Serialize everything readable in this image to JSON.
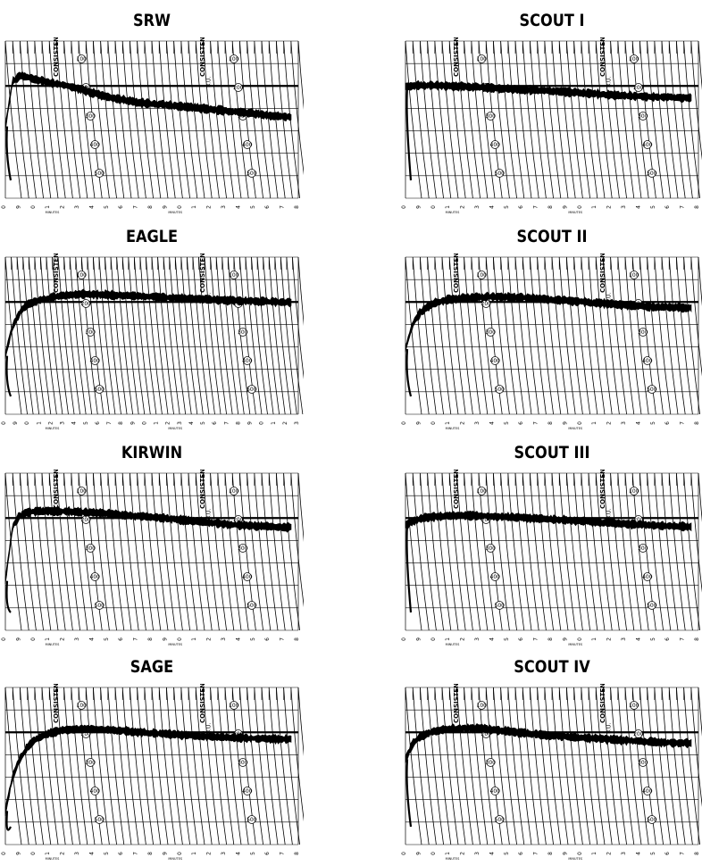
{
  "chart_data": [
    {
      "type": "line",
      "title": "SRW",
      "consistency_label": "CONSISTENCY",
      "bu_label": "B.U.",
      "arc_labels": [
        "100",
        "200",
        "300",
        "400",
        "500"
      ],
      "minutes_label": "MINUTES",
      "x_ticks": [
        "0",
        "9",
        "0",
        "1",
        "2",
        "3",
        "4",
        "5",
        "6",
        "7",
        "8",
        "9",
        "0",
        "1",
        "2",
        "3",
        "4",
        "5",
        "6",
        "7",
        "8"
      ],
      "x": [
        0,
        0.5,
        1,
        1.5,
        2,
        3,
        4,
        5,
        6,
        7,
        8,
        9,
        10,
        11,
        12,
        13,
        14,
        15,
        16,
        17,
        18,
        19,
        20
      ],
      "y": [
        320,
        520,
        545,
        540,
        530,
        515,
        505,
        490,
        470,
        455,
        440,
        430,
        422,
        417,
        410,
        405,
        398,
        392,
        385,
        380,
        372,
        365,
        360
      ]
    },
    {
      "type": "line",
      "title": "SCOUT I",
      "consistency_label": "CONSISTENCY",
      "bu_label": "B.U.",
      "arc_labels": [
        "100",
        "200",
        "300",
        "400",
        "500"
      ],
      "minutes_label": "MINUTES",
      "x_ticks": [
        "0",
        "9",
        "0",
        "1",
        "2",
        "3",
        "4",
        "5",
        "6",
        "7",
        "8",
        "9",
        "0",
        "1",
        "2",
        "3",
        "4",
        "5",
        "6",
        "7",
        "8"
      ],
      "x": [
        0,
        0.5,
        1,
        1.5,
        2,
        3,
        4,
        5,
        6,
        7,
        8,
        9,
        10,
        11,
        12,
        13,
        14,
        15,
        16,
        17,
        18,
        19,
        20
      ],
      "y": [
        495,
        500,
        503,
        503,
        502,
        500,
        497,
        494,
        491,
        487,
        484,
        481,
        478,
        474,
        470,
        466,
        462,
        458,
        455,
        452,
        450,
        448,
        447
      ]
    },
    {
      "type": "line",
      "title": "EAGLE",
      "consistency_label": "CONSISTENCY",
      "bu_label": "B.U.",
      "arc_labels": [
        "100",
        "200",
        "300",
        "400",
        "500"
      ],
      "minutes_label": "MINUTES",
      "x_ticks": [
        "0",
        "9",
        "0",
        "1",
        "2",
        "3",
        "4",
        "5",
        "6",
        "7",
        "8",
        "9",
        "0",
        "1",
        "2",
        "3",
        "4",
        "5",
        "6",
        "7",
        "8",
        "9",
        "0",
        "1",
        "2",
        "3"
      ],
      "x": [
        0,
        0.5,
        1,
        1.5,
        2,
        3,
        4,
        5,
        6,
        7,
        8,
        9,
        10,
        11,
        12,
        13,
        14,
        15,
        16,
        17,
        18,
        19,
        20,
        21,
        22,
        23,
        24,
        25
      ],
      "y": [
        260,
        370,
        430,
        470,
        490,
        508,
        520,
        528,
        532,
        535,
        534,
        532,
        530,
        528,
        526,
        523,
        520,
        518,
        516,
        513,
        510,
        508,
        506,
        505,
        503,
        502,
        500,
        499
      ]
    },
    {
      "type": "line",
      "title": "SCOUT II",
      "consistency_label": "CONSISTENCY",
      "bu_label": "B.U.",
      "arc_labels": [
        "100",
        "200",
        "300",
        "400",
        "500"
      ],
      "minutes_label": "MINUTES",
      "x_ticks": [
        "0",
        "9",
        "0",
        "1",
        "2",
        "3",
        "4",
        "5",
        "6",
        "7",
        "8",
        "9",
        "0",
        "1",
        "2",
        "3",
        "4",
        "5",
        "6",
        "7",
        "8"
      ],
      "x": [
        0,
        0.5,
        1,
        1.5,
        2,
        3,
        4,
        5,
        6,
        7,
        8,
        9,
        10,
        11,
        12,
        13,
        14,
        15,
        16,
        17,
        18,
        19,
        20
      ],
      "y": [
        290,
        400,
        450,
        478,
        495,
        510,
        518,
        522,
        523,
        522,
        520,
        516,
        512,
        508,
        503,
        498,
        493,
        488,
        484,
        480,
        477,
        475,
        474
      ]
    },
    {
      "type": "line",
      "title": "KIRWIN",
      "consistency_label": "CONSISTENCY",
      "bu_label": "B.U.",
      "arc_labels": [
        "100",
        "200",
        "300",
        "400",
        "500"
      ],
      "minutes_label": "MINUTES",
      "x_ticks": [
        "0",
        "9",
        "0",
        "1",
        "2",
        "3",
        "4",
        "5",
        "6",
        "7",
        "8",
        "9",
        "0",
        "1",
        "2",
        "3",
        "4",
        "5",
        "6",
        "7",
        "8"
      ],
      "x": [
        0,
        0.5,
        1,
        1.5,
        2,
        3,
        4,
        5,
        6,
        7,
        8,
        9,
        10,
        11,
        12,
        13,
        14,
        15,
        16,
        17,
        18,
        19,
        20
      ],
      "y": [
        220,
        460,
        510,
        525,
        530,
        532,
        530,
        527,
        524,
        520,
        515,
        510,
        505,
        500,
        494,
        488,
        482,
        476,
        470,
        466,
        463,
        460,
        458
      ]
    },
    {
      "type": "line",
      "title": "SCOUT III",
      "consistency_label": "CONSISTENCY",
      "bu_label": "B.U.",
      "arc_labels": [
        "100",
        "200",
        "300",
        "400",
        "500"
      ],
      "minutes_label": "MINUTES",
      "x_ticks": [
        "0",
        "9",
        "0",
        "1",
        "2",
        "3",
        "4",
        "5",
        "6",
        "7",
        "8",
        "9",
        "0",
        "1",
        "2",
        "3",
        "4",
        "5",
        "6",
        "7",
        "8"
      ],
      "x": [
        0,
        0.5,
        1,
        1.5,
        2,
        3,
        4,
        5,
        6,
        7,
        8,
        9,
        10,
        11,
        12,
        13,
        14,
        15,
        16,
        17,
        18,
        19,
        20
      ],
      "y": [
        470,
        485,
        495,
        502,
        506,
        510,
        511,
        510,
        508,
        505,
        502,
        499,
        495,
        492,
        488,
        484,
        480,
        476,
        472,
        469,
        466,
        464,
        463
      ]
    },
    {
      "type": "line",
      "title": "SAGE",
      "consistency_label": "CONSISTENCY",
      "bu_label": "B.U.",
      "arc_labels": [
        "100",
        "200",
        "300",
        "400",
        "500"
      ],
      "minutes_label": "MINUTES",
      "x_ticks": [
        "0",
        "9",
        "0",
        "1",
        "2",
        "3",
        "4",
        "5",
        "6",
        "7",
        "8",
        "9",
        "0",
        "1",
        "2",
        "3",
        "4",
        "5",
        "6",
        "7",
        "8"
      ],
      "x": [
        0,
        0.5,
        1,
        1.5,
        2,
        3,
        4,
        5,
        6,
        7,
        8,
        9,
        10,
        11,
        12,
        13,
        14,
        15,
        16,
        17,
        18,
        19,
        20
      ],
      "y": [
        150,
        300,
        380,
        430,
        465,
        495,
        510,
        515,
        515,
        512,
        508,
        503,
        498,
        494,
        490,
        486,
        482,
        479,
        476,
        474,
        472,
        470,
        469
      ]
    },
    {
      "type": "line",
      "title": "SCOUT IV",
      "consistency_label": "CONSISTENCY",
      "bu_label": "B.U.",
      "arc_labels": [
        "100",
        "200",
        "300",
        "400",
        "500"
      ],
      "minutes_label": "MINUTES",
      "x_ticks": [
        "0",
        "9",
        "0",
        "1",
        "2",
        "3",
        "4",
        "5",
        "6",
        "7",
        "8",
        "9",
        "0",
        "1",
        "2",
        "3",
        "4",
        "5",
        "6",
        "7",
        "8"
      ],
      "x": [
        0,
        0.5,
        1,
        1.5,
        2,
        3,
        4,
        5,
        6,
        7,
        8,
        9,
        10,
        11,
        12,
        13,
        14,
        15,
        16,
        17,
        18,
        19,
        20
      ],
      "y": [
        380,
        450,
        478,
        494,
        504,
        514,
        518,
        517,
        512,
        505,
        498,
        492,
        487,
        482,
        478,
        474,
        470,
        466,
        462,
        458,
        455,
        453,
        452
      ]
    }
  ]
}
